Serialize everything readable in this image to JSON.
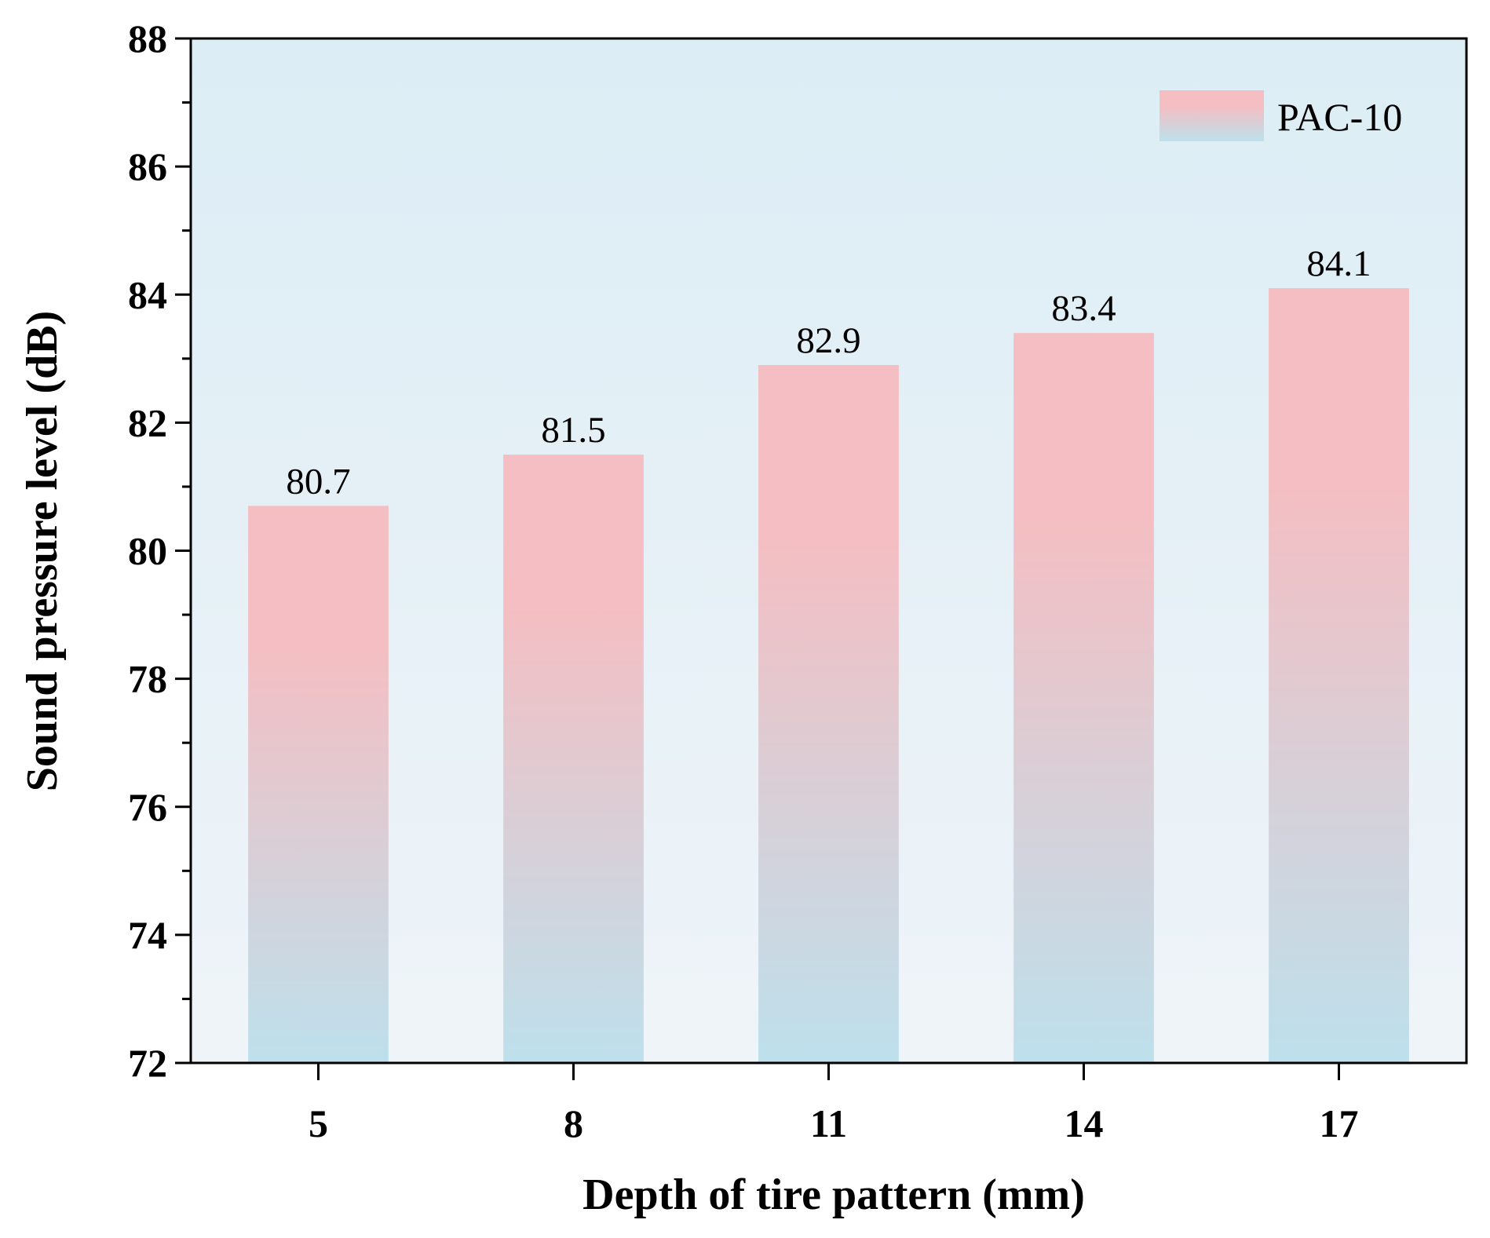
{
  "chart_data": {
    "type": "bar",
    "title": "",
    "xlabel": "Depth of tire pattern (mm)",
    "ylabel": "Sound pressure level (dB)",
    "categories": [
      "5",
      "8",
      "11",
      "14",
      "17"
    ],
    "series": [
      {
        "name": "PAC-10",
        "values": [
          80.7,
          81.5,
          82.9,
          83.4,
          84.1
        ]
      }
    ],
    "data_labels": [
      "80.7",
      "81.5",
      "82.9",
      "83.4",
      "84.1"
    ],
    "ylim": [
      72,
      88
    ],
    "yticks": [
      "72",
      "74",
      "76",
      "78",
      "80",
      "82",
      "84",
      "86",
      "88"
    ],
    "grid": false,
    "legend_position": "top-right",
    "colors": {
      "bar_top": "#f4bec2",
      "bar_bottom": "#bde0ec",
      "background_top": "#dcedf5",
      "background_bottom": "#eff4f8"
    }
  }
}
